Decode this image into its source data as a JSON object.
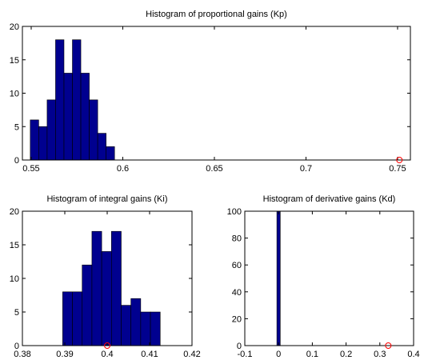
{
  "chart_data": [
    {
      "type": "histogram",
      "title": "Histogram of proportional gains (Kp)",
      "bins": [
        0.5495,
        0.5541,
        0.5587,
        0.5633,
        0.5679,
        0.5725,
        0.5771,
        0.5817,
        0.5863,
        0.5909,
        0.5955
      ],
      "counts": [
        6,
        5,
        9,
        18,
        13,
        18,
        13,
        9,
        4,
        2
      ],
      "color": "#00008f",
      "marker": {
        "x": 0.751,
        "y": 0,
        "color": "#ff0000"
      },
      "xlim": [
        0.5452,
        0.757
      ],
      "xticks": [
        0.55,
        0.6,
        0.65,
        0.7,
        0.75
      ],
      "ylim": [
        0,
        20
      ],
      "yticks": [
        0,
        5,
        10,
        15,
        20
      ]
    },
    {
      "type": "histogram",
      "title": "Histogram of integral gains (Ki)",
      "bins": [
        0.3895,
        0.3918,
        0.3941,
        0.3964,
        0.3987,
        0.401,
        0.4033,
        0.4056,
        0.4079,
        0.4102,
        0.4125
      ],
      "counts": [
        8,
        8,
        12,
        17,
        14,
        17,
        6,
        7,
        5,
        5
      ],
      "color": "#00008f",
      "marker": {
        "x": 0.4,
        "y": 0,
        "color": "#ff0000"
      },
      "xlim": [
        0.38,
        0.42
      ],
      "xticks": [
        0.38,
        0.39,
        0.4,
        0.41,
        0.42
      ],
      "ylim": [
        0,
        20
      ],
      "yticks": [
        0,
        5,
        10,
        15,
        20
      ]
    },
    {
      "type": "histogram",
      "title": "Histogram of derivative gains (Kd)",
      "bins": [
        -0.005,
        0.005
      ],
      "counts": [
        100
      ],
      "color": "#00008f",
      "marker": {
        "x": 0.325,
        "y": 0,
        "color": "#ff0000"
      },
      "xlim": [
        -0.1,
        0.4
      ],
      "xticks": [
        -0.1,
        0,
        0.1,
        0.2,
        0.3,
        0.4
      ],
      "ylim": [
        0,
        100
      ],
      "yticks": [
        0,
        20,
        40,
        60,
        80,
        100
      ]
    }
  ]
}
